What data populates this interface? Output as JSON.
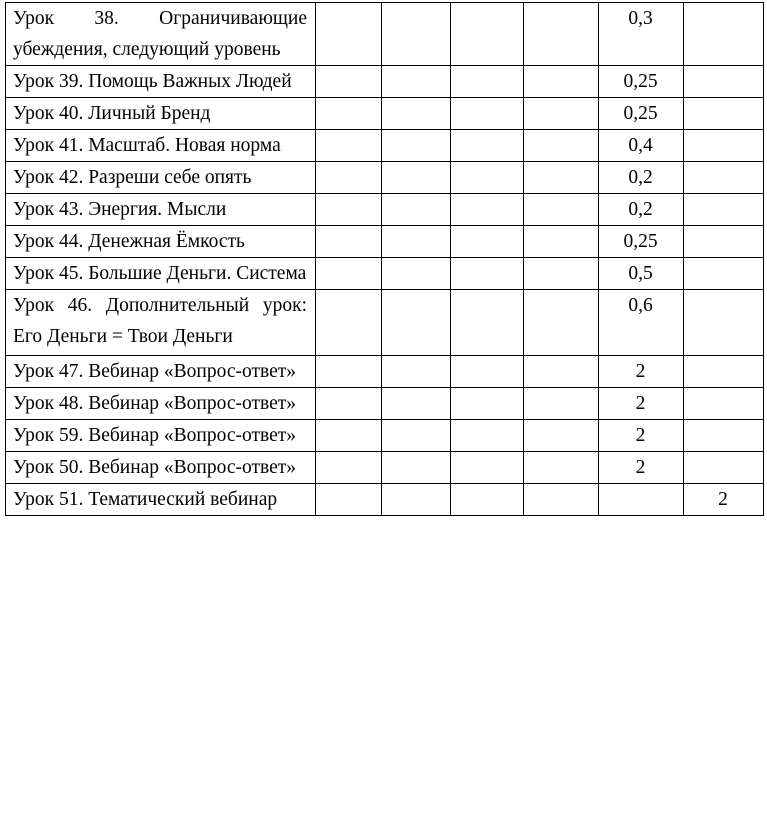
{
  "table": {
    "rows": [
      [
        "Урок 38. Ограничивающие убеждения, следующий уровень",
        null,
        null,
        null,
        null,
        "0,3",
        null
      ],
      [
        "Урок 39. Помощь Важных Людей",
        null,
        null,
        null,
        null,
        "0,25",
        null
      ],
      [
        "Урок 40. Личный Бренд",
        null,
        null,
        null,
        null,
        "0,25",
        null
      ],
      [
        "Урок 41. Масштаб. Новая норма",
        null,
        null,
        null,
        null,
        "0,4",
        null
      ],
      [
        "Урок 42. Разреши себе опять",
        null,
        null,
        null,
        null,
        "0,2",
        null
      ],
      [
        "Урок 43. Энергия. Мысли",
        null,
        null,
        null,
        null,
        "0,2",
        null
      ],
      [
        "Урок 44. Денежная Ёмкость",
        null,
        null,
        null,
        null,
        "0,25",
        null
      ],
      [
        "Урок 45. Большие Деньги. Система",
        null,
        null,
        null,
        null,
        "0,5",
        null
      ],
      [
        "Урок 46. Дополнительный урок: Его Деньги = Твои Деньги",
        null,
        null,
        null,
        null,
        "0,6",
        null
      ],
      [
        "Урок 47. Вебинар «Вопрос-ответ»",
        null,
        null,
        null,
        null,
        "2",
        null
      ],
      [
        "Урок 48. Вебинар «Вопрос-ответ»",
        null,
        null,
        null,
        null,
        "2",
        null
      ],
      [
        "Урок 59. Вебинар «Вопрос-ответ»",
        null,
        null,
        null,
        null,
        "2",
        null
      ],
      [
        "Урок 50. Вебинар «Вопрос-ответ»",
        null,
        null,
        null,
        null,
        "2",
        null
      ],
      [
        "Урок 51. Тематический вебинар",
        null,
        null,
        null,
        null,
        null,
        "2"
      ]
    ]
  }
}
